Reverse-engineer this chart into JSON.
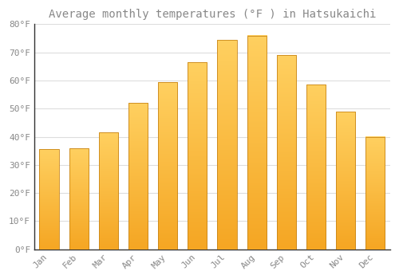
{
  "title": "Average monthly temperatures (°F ) in Hatsukaichi",
  "months": [
    "Jan",
    "Feb",
    "Mar",
    "Apr",
    "May",
    "Jun",
    "Jul",
    "Aug",
    "Sep",
    "Oct",
    "Nov",
    "Dec"
  ],
  "values": [
    35.5,
    36.0,
    41.5,
    52.0,
    59.5,
    66.5,
    74.5,
    76.0,
    69.0,
    58.5,
    49.0,
    40.0
  ],
  "bar_color_bottom": "#F5A623",
  "bar_color_top": "#FFD060",
  "bar_edge_color": "#C8861A",
  "background_color": "#FFFFFF",
  "grid_color": "#DDDDDD",
  "text_color": "#888888",
  "spine_color": "#333333",
  "ylim": [
    0,
    80
  ],
  "yticks": [
    0,
    10,
    20,
    30,
    40,
    50,
    60,
    70,
    80
  ],
  "ytick_labels": [
    "0°F",
    "10°F",
    "20°F",
    "30°F",
    "40°F",
    "50°F",
    "60°F",
    "70°F",
    "80°F"
  ],
  "title_fontsize": 10,
  "tick_fontsize": 8
}
